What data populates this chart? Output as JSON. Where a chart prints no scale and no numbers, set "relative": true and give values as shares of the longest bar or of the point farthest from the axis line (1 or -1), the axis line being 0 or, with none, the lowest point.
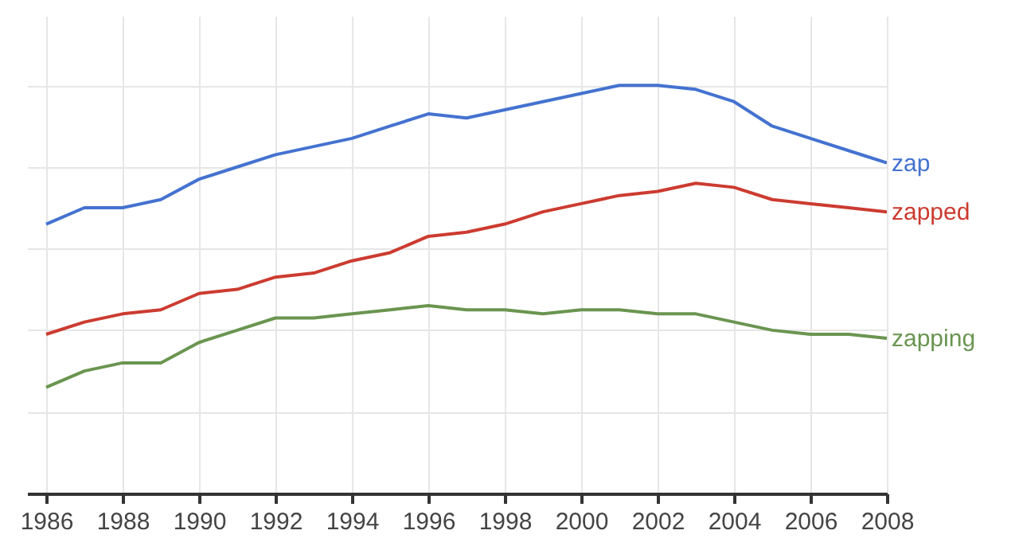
{
  "chart_data": {
    "type": "line",
    "relative": true,
    "x": [
      1986,
      1987,
      1988,
      1989,
      1990,
      1991,
      1992,
      1993,
      1994,
      1995,
      1996,
      1997,
      1998,
      1999,
      2000,
      2001,
      2002,
      2003,
      2004,
      2005,
      2006,
      2007,
      2008
    ],
    "xlim": [
      1985.5,
      2008
    ],
    "xticks": [
      1986,
      1988,
      1990,
      1992,
      1994,
      1996,
      1998,
      2000,
      2002,
      2004,
      2006,
      2008
    ],
    "grid": true,
    "legend": false,
    "series": [
      {
        "name": "zap",
        "color": "#4472d0",
        "values": [
          0.66,
          0.7,
          0.7,
          0.72,
          0.77,
          0.8,
          0.83,
          0.85,
          0.87,
          0.9,
          0.93,
          0.92,
          0.94,
          0.96,
          0.98,
          1.0,
          1.0,
          0.99,
          0.96,
          0.9,
          0.87,
          0.84,
          0.81
        ]
      },
      {
        "name": "zapped",
        "color": "#cc3b30",
        "values": [
          0.39,
          0.42,
          0.44,
          0.45,
          0.49,
          0.5,
          0.53,
          0.54,
          0.57,
          0.59,
          0.63,
          0.64,
          0.66,
          0.69,
          0.71,
          0.73,
          0.74,
          0.76,
          0.75,
          0.72,
          0.71,
          0.7,
          0.69
        ]
      },
      {
        "name": "zapping",
        "color": "#6a9550",
        "values": [
          0.26,
          0.3,
          0.32,
          0.32,
          0.37,
          0.4,
          0.43,
          0.43,
          0.44,
          0.45,
          0.46,
          0.45,
          0.45,
          0.44,
          0.45,
          0.45,
          0.44,
          0.44,
          0.42,
          0.4,
          0.39,
          0.39,
          0.38
        ]
      }
    ]
  }
}
